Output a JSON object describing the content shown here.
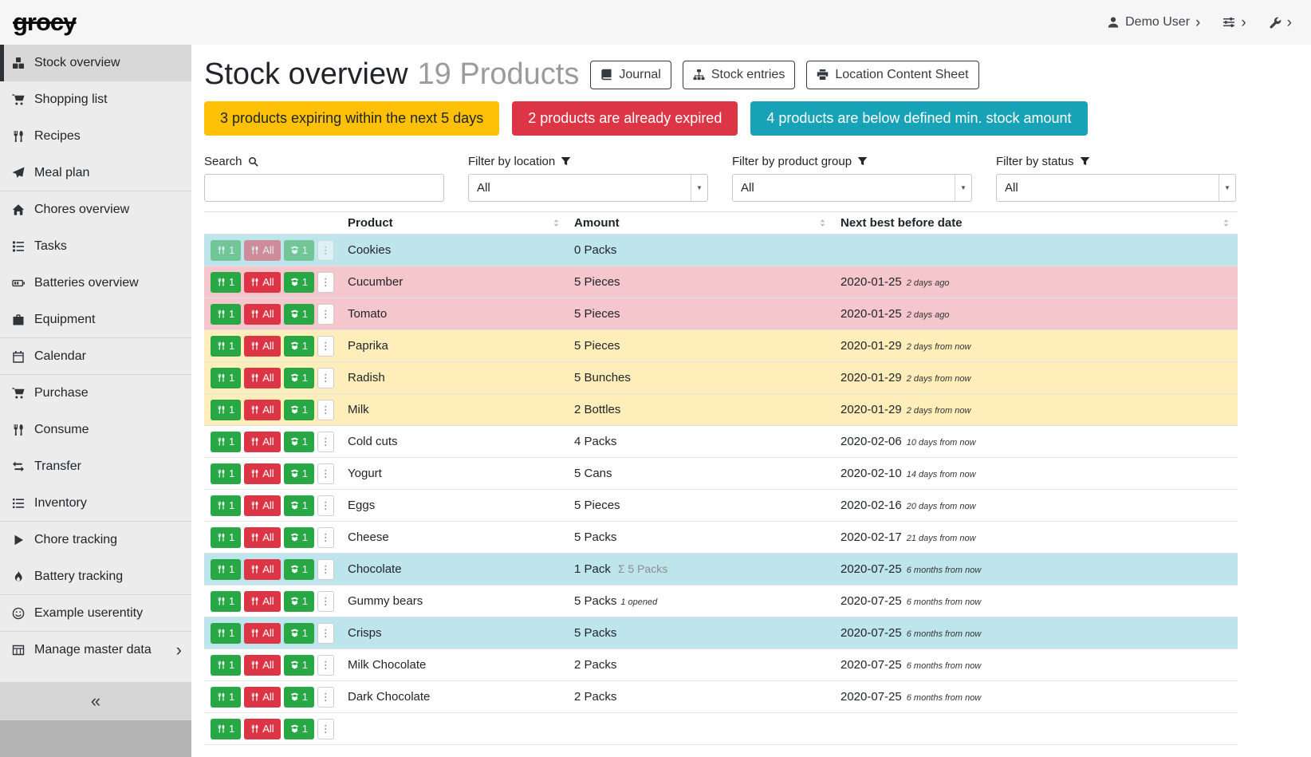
{
  "app": {
    "logo": "grocy"
  },
  "topbar": {
    "user_label": "Demo User",
    "icons": [
      "user-icon",
      "sliders-icon",
      "wrench-icon"
    ]
  },
  "sidebar": {
    "items": [
      {
        "label": "Stock overview",
        "icon": "boxes",
        "active": true
      },
      {
        "label": "Shopping list",
        "icon": "shopping-cart"
      },
      {
        "label": "Recipes",
        "icon": "utensils"
      },
      {
        "label": "Meal plan",
        "icon": "paper-plane",
        "divider_after": true
      },
      {
        "label": "Chores overview",
        "icon": "home"
      },
      {
        "label": "Tasks",
        "icon": "tasks"
      },
      {
        "label": "Batteries overview",
        "icon": "battery"
      },
      {
        "label": "Equipment",
        "icon": "toolbox",
        "divider_after": true
      },
      {
        "label": "Calendar",
        "icon": "calendar",
        "divider_after": true
      },
      {
        "label": "Purchase",
        "icon": "shopping-cart"
      },
      {
        "label": "Consume",
        "icon": "utensils"
      },
      {
        "label": "Transfer",
        "icon": "exchange"
      },
      {
        "label": "Inventory",
        "icon": "list",
        "divider_after": true
      },
      {
        "label": "Chore tracking",
        "icon": "play"
      },
      {
        "label": "Battery tracking",
        "icon": "fire",
        "divider_after": true
      },
      {
        "label": "Example userentity",
        "icon": "smile",
        "divider_after": true
      },
      {
        "label": "Manage master data",
        "icon": "table",
        "chevron": true
      }
    ]
  },
  "header": {
    "title": "Stock overview",
    "subtitle": "19 Products",
    "buttons": [
      {
        "label": "Journal",
        "icon": "book"
      },
      {
        "label": "Stock entries",
        "icon": "sitemap"
      },
      {
        "label": "Location Content Sheet",
        "icon": "print"
      }
    ]
  },
  "banners": [
    {
      "kind": "warning",
      "label": "3 products expiring within the next 5 days",
      "color": "#ffc107",
      "text_color": "#212529"
    },
    {
      "kind": "danger",
      "label": "2 products are already expired",
      "color": "#dc3545",
      "text_color": "#ffffff"
    },
    {
      "kind": "info",
      "label": "4 products are below defined min. stock amount",
      "color": "#17a2b8",
      "text_color": "#ffffff"
    }
  ],
  "filters": {
    "search": {
      "label": "Search",
      "value": ""
    },
    "location": {
      "label": "Filter by location",
      "value": "All"
    },
    "product_group": {
      "label": "Filter by product group",
      "value": "All"
    },
    "status": {
      "label": "Filter by status",
      "value": "All"
    }
  },
  "colors": {
    "green": "#28a745",
    "red": "#dc3545",
    "row_expired": "#f5c6cb",
    "row_due_soon": "#ffeeba",
    "row_below_min": "#bee5eb"
  },
  "table": {
    "columns": [
      "Product",
      "Amount",
      "Next best before date"
    ],
    "row_buttons": {
      "consume_one": "1",
      "consume_all": "All",
      "open_one": "1"
    },
    "rows": [
      {
        "product": "Cookies",
        "amount": "0 Packs",
        "date": "",
        "date_note": "",
        "status": "info",
        "disabled": true
      },
      {
        "product": "Cucumber",
        "amount": "5 Pieces",
        "date": "2020-01-25",
        "date_note": "2 days ago",
        "status": "danger"
      },
      {
        "product": "Tomato",
        "amount": "5 Pieces",
        "date": "2020-01-25",
        "date_note": "2 days ago",
        "status": "danger"
      },
      {
        "product": "Paprika",
        "amount": "5 Pieces",
        "date": "2020-01-29",
        "date_note": "2 days from now",
        "status": "warning"
      },
      {
        "product": "Radish",
        "amount": "5 Bunches",
        "date": "2020-01-29",
        "date_note": "2 days from now",
        "status": "warning"
      },
      {
        "product": "Milk",
        "amount": "2 Bottles",
        "date": "2020-01-29",
        "date_note": "2 days from now",
        "status": "warning"
      },
      {
        "product": "Cold cuts",
        "amount": "4 Packs",
        "date": "2020-02-06",
        "date_note": "10 days from now",
        "status": ""
      },
      {
        "product": "Yogurt",
        "amount": "5 Cans",
        "date": "2020-02-10",
        "date_note": "14 days from now",
        "status": ""
      },
      {
        "product": "Eggs",
        "amount": "5 Pieces",
        "date": "2020-02-16",
        "date_note": "20 days from now",
        "status": ""
      },
      {
        "product": "Cheese",
        "amount": "5 Packs",
        "date": "2020-02-17",
        "date_note": "21 days from now",
        "status": ""
      },
      {
        "product": "Chocolate",
        "amount": "1 Pack",
        "amount_extra": "Σ 5 Packs",
        "date": "2020-07-25",
        "date_note": "6 months from now",
        "status": "info"
      },
      {
        "product": "Gummy bears",
        "amount": "5 Packs",
        "amount_note": "1 opened",
        "date": "2020-07-25",
        "date_note": "6 months from now",
        "status": ""
      },
      {
        "product": "Crisps",
        "amount": "5 Packs",
        "date": "2020-07-25",
        "date_note": "6 months from now",
        "status": "info"
      },
      {
        "product": "Milk Chocolate",
        "amount": "2 Packs",
        "date": "2020-07-25",
        "date_note": "6 months from now",
        "status": ""
      },
      {
        "product": "Dark Chocolate",
        "amount": "2 Packs",
        "date": "2020-07-25",
        "date_note": "6 months from now",
        "status": ""
      },
      {
        "product": "",
        "amount": "",
        "date": "",
        "date_note": "",
        "status": ""
      }
    ]
  }
}
